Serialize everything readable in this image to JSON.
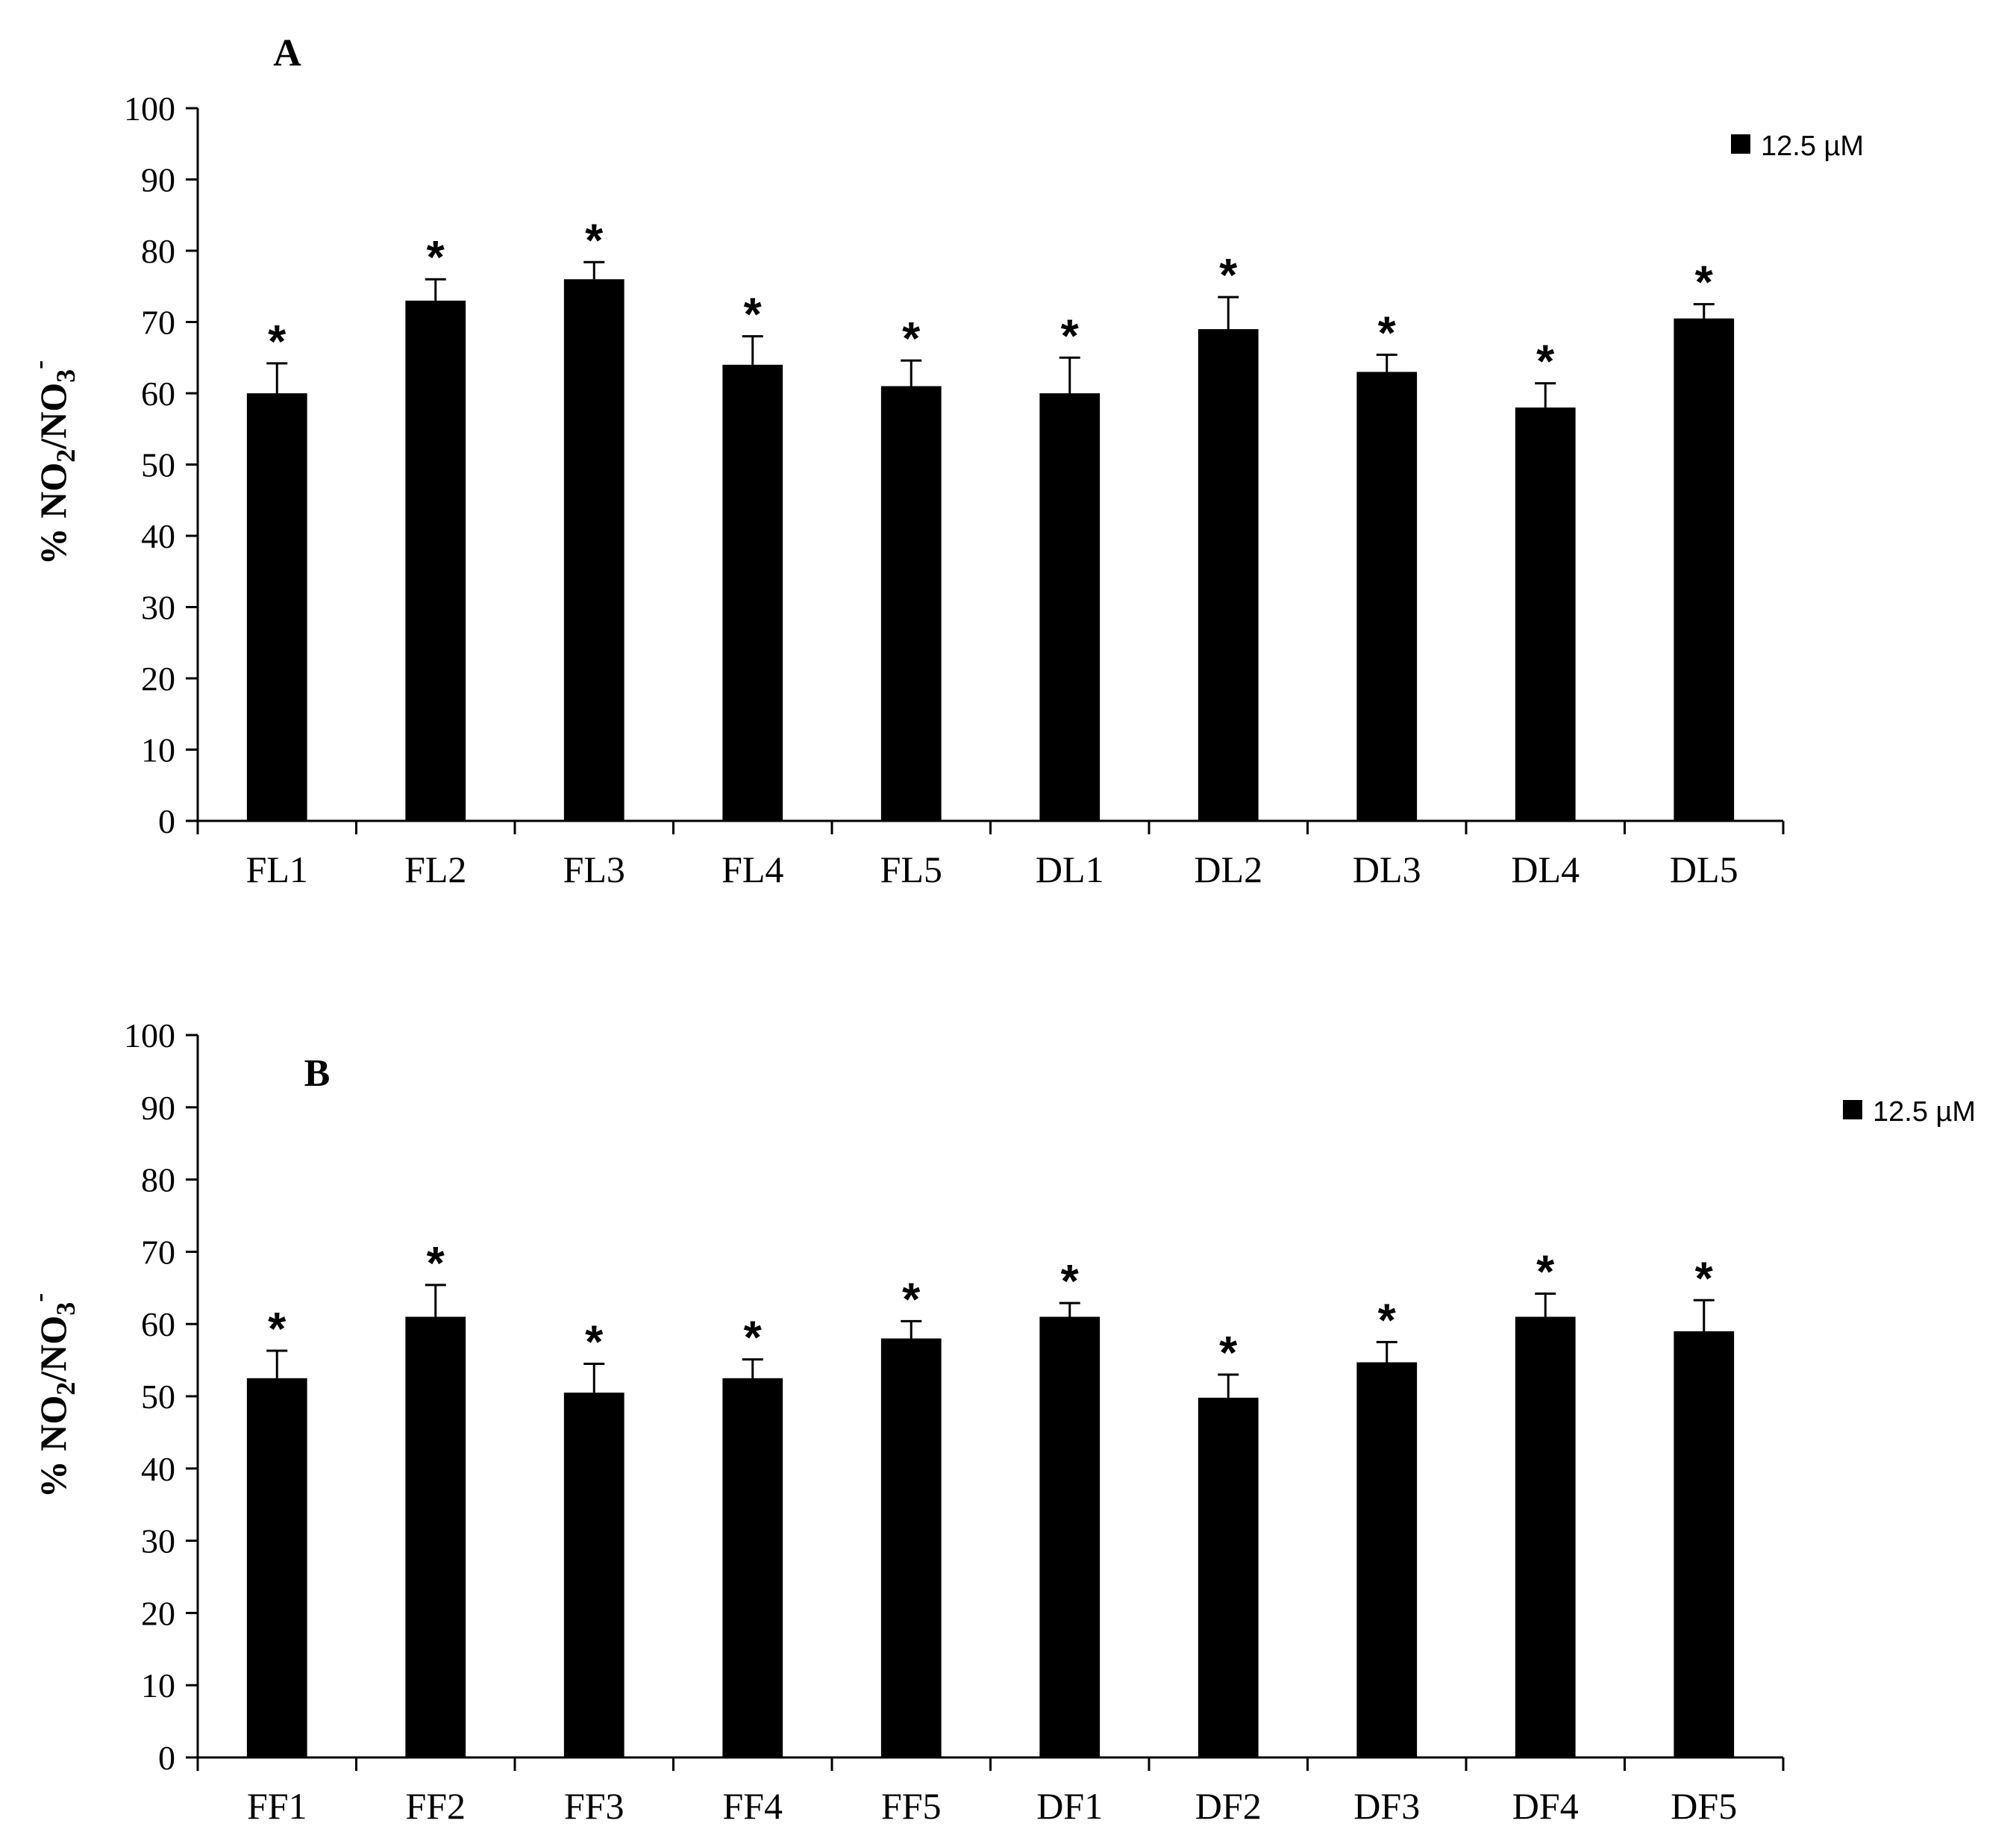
{
  "colors": {
    "bar": "#000000",
    "axis": "#000000",
    "background": "#ffffff"
  },
  "chart_data": [
    {
      "type": "bar",
      "panel_label": "A",
      "categories": [
        "FL1",
        "FL2",
        "FL3",
        "FL4",
        "FL5",
        "DL1",
        "DL2",
        "DL3",
        "DL4",
        "DL5"
      ],
      "series": [
        {
          "name": "12.5 µM",
          "values": [
            60,
            73,
            76,
            64,
            61,
            60,
            69,
            63,
            58,
            70.5
          ],
          "errors": [
            4.2,
            3.0,
            2.4,
            4.0,
            3.6,
            5.0,
            4.5,
            2.4,
            3.4,
            2.0
          ],
          "annotations": [
            "*",
            "*",
            "*",
            "*",
            "*",
            "*",
            "*",
            "*",
            "*",
            "*"
          ]
        }
      ],
      "ylabel": {
        "prefix": "% NO",
        "sub1": "2",
        "mid": "/NO",
        "sub2": "3",
        "sup": "-"
      },
      "ylim": [
        0,
        100
      ],
      "yticks": [
        "0",
        "10",
        "20",
        "30",
        "40",
        "50",
        "60",
        "70",
        "80",
        "90",
        "100"
      ],
      "legend": {
        "position": "top-right"
      },
      "grid": false
    },
    {
      "type": "bar",
      "panel_label": "B",
      "categories": [
        "FF1",
        "FF2",
        "FF3",
        "FF4",
        "FF5",
        "DF1",
        "DF2",
        "DF3",
        "DF4",
        "DF5"
      ],
      "series": [
        {
          "name": "12.5 µM",
          "values": [
            52.5,
            61,
            50.5,
            52.5,
            58,
            61,
            49.8,
            54.7,
            61,
            59
          ],
          "errors": [
            3.8,
            4.4,
            4.0,
            2.6,
            2.4,
            1.9,
            3.2,
            2.8,
            3.2,
            4.3
          ],
          "annotations": [
            "*",
            "*",
            "*",
            "*",
            "*",
            "*",
            "*",
            "*",
            "*",
            "*"
          ]
        }
      ],
      "ylabel": {
        "prefix": "% NO",
        "sub1": "2",
        "mid": "/NO",
        "sub2": "3",
        "sup": "-"
      },
      "ylim": [
        0,
        100
      ],
      "yticks": [
        "0",
        "10",
        "20",
        "30",
        "40",
        "50",
        "60",
        "70",
        "80",
        "90",
        "100"
      ],
      "legend": {
        "position": "top-right"
      },
      "grid": false
    }
  ]
}
